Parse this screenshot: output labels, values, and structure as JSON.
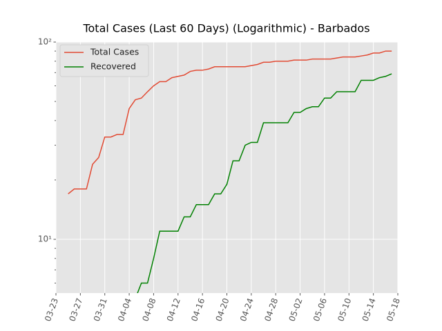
{
  "chart_data": {
    "type": "line",
    "title": "Total Cases (Last 60 Days) (Logarithmic) - Barbados",
    "x": [
      "03-25",
      "03-26",
      "03-27",
      "03-28",
      "03-29",
      "03-30",
      "03-31",
      "04-01",
      "04-02",
      "04-03",
      "04-04",
      "04-05",
      "04-06",
      "04-07",
      "04-08",
      "04-09",
      "04-10",
      "04-11",
      "04-12",
      "04-13",
      "04-14",
      "04-15",
      "04-16",
      "04-17",
      "04-18",
      "04-19",
      "04-20",
      "04-21",
      "04-22",
      "04-23",
      "04-24",
      "04-25",
      "04-26",
      "04-27",
      "04-28",
      "04-29",
      "04-30",
      "05-01",
      "05-02",
      "05-03",
      "05-04",
      "05-05",
      "05-06",
      "05-07",
      "05-08",
      "05-09",
      "05-10",
      "05-11",
      "05-12",
      "05-13",
      "05-14",
      "05-15",
      "05-16",
      "05-17"
    ],
    "series": [
      {
        "name": "Total Cases",
        "color": "#e24a33",
        "values": [
          17,
          18,
          18,
          18,
          24,
          26,
          33,
          33,
          34,
          34,
          46,
          51,
          52,
          56,
          60,
          63,
          63,
          66,
          67,
          68,
          71,
          72,
          72,
          73,
          75,
          75,
          75,
          75,
          75,
          75,
          76,
          77,
          79,
          79,
          80,
          80,
          80,
          81,
          81,
          81,
          82,
          82,
          82,
          82,
          83,
          84,
          84,
          84,
          85,
          86,
          88,
          88,
          90,
          90
        ]
      },
      {
        "name": "Recovered",
        "color": "#008000",
        "values": [
          null,
          null,
          null,
          null,
          null,
          null,
          null,
          null,
          null,
          null,
          null,
          5,
          6,
          6,
          8,
          11,
          11,
          11,
          11,
          13,
          13,
          15,
          15,
          15,
          17,
          17,
          19,
          25,
          25,
          30,
          31,
          31,
          39,
          39,
          39,
          39,
          39,
          44,
          44,
          46,
          47,
          47,
          52,
          52,
          56,
          56,
          56,
          56,
          64,
          64,
          64,
          66,
          67,
          69
        ]
      }
    ],
    "xlim": [
      "03-23",
      "05-18"
    ],
    "xticks": [
      "03-23",
      "03-27",
      "03-31",
      "04-04",
      "04-08",
      "04-12",
      "04-16",
      "04-20",
      "04-24",
      "04-28",
      "05-02",
      "05-06",
      "05-10",
      "05-14",
      "05-18"
    ],
    "ylim": [
      5.34,
      100
    ],
    "yticks": [
      {
        "value": 10,
        "label": "10¹"
      },
      {
        "value": 100,
        "label": "10²"
      }
    ],
    "yminorticks": [
      6,
      7,
      8,
      9,
      20,
      30,
      40,
      50,
      60,
      70,
      80,
      90
    ],
    "log_y": true,
    "grid": true,
    "legend": "upper left"
  }
}
